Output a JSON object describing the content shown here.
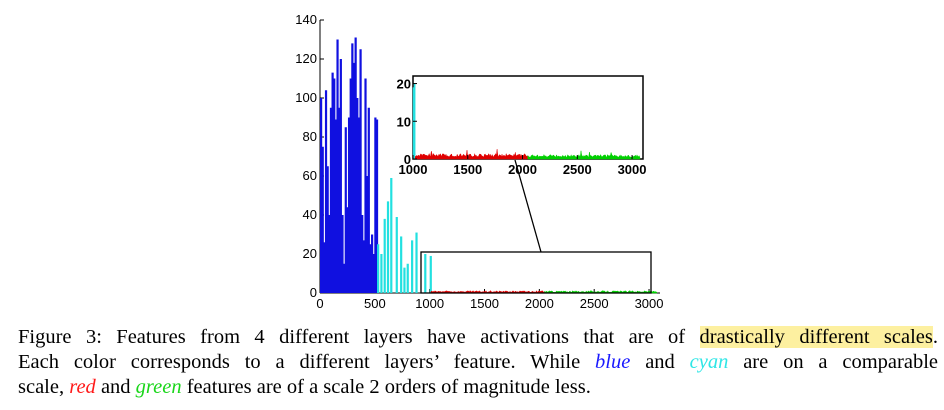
{
  "chart_data": [
    {
      "type": "bar",
      "title": "",
      "xlabel": "",
      "ylabel": "",
      "xlim": [
        0,
        3100
      ],
      "ylim": [
        0,
        140
      ],
      "x_ticks": [
        "0",
        "500",
        "1000",
        "1500",
        "2000",
        "2500",
        "3000"
      ],
      "y_ticks": [
        "0",
        "20",
        "40",
        "60",
        "80",
        "100",
        "120",
        "140"
      ],
      "series": [
        {
          "name": "blue",
          "color": "#1010e0",
          "x": [
            10,
            25,
            40,
            55,
            70,
            85,
            100,
            115,
            130,
            145,
            160,
            175,
            190,
            205,
            220,
            235,
            250,
            265,
            280,
            295,
            310,
            325,
            340,
            355,
            370,
            385,
            400,
            415,
            430,
            445,
            460,
            475,
            490,
            505,
            520
          ],
          "values": [
            100,
            75,
            26,
            104,
            65,
            40,
            95,
            113,
            110,
            89,
            130,
            95,
            120,
            40,
            15,
            85,
            44,
            90,
            110,
            128,
            118,
            131,
            100,
            90,
            125,
            40,
            27,
            110,
            60,
            95,
            25,
            30,
            20,
            90,
            89
          ]
        },
        {
          "name": "cyan",
          "color": "#22e0e0",
          "x": [
            530,
            560,
            590,
            620,
            650,
            700,
            740,
            770,
            800,
            840,
            880,
            960,
            1010
          ],
          "values": [
            25,
            20,
            38,
            47,
            59,
            39,
            29,
            13,
            15,
            27,
            31,
            20,
            19
          ]
        },
        {
          "name": "red",
          "color": "#e00000",
          "x_range": [
            1010,
            2048
          ],
          "approx_level": 1.0
        },
        {
          "name": "green",
          "color": "#00d000",
          "x_range": [
            2048,
            3072
          ],
          "approx_level": 0.8
        }
      ]
    },
    {
      "type": "bar",
      "title": "inset",
      "xlim": [
        1000,
        3100
      ],
      "ylim": [
        0,
        22
      ],
      "x_ticks": [
        "1000",
        "1500",
        "2000",
        "2500",
        "3000"
      ],
      "y_ticks": [
        "0",
        "10",
        "20"
      ],
      "series": [
        {
          "name": "cyan",
          "color": "#22e0e0",
          "x": [
            1005,
            1015
          ],
          "values": [
            19,
            20
          ]
        },
        {
          "name": "red",
          "color": "#e00000",
          "x_range": [
            1020,
            2048
          ],
          "approx_level": 1.0
        },
        {
          "name": "green",
          "color": "#00d000",
          "x_range": [
            2048,
            3072
          ],
          "approx_level": 0.8
        }
      ]
    }
  ],
  "caption": {
    "line1_prefix": "Figure 3:  Features from 4 different layers have activations that are of ",
    "line1_highlight": "drastically different scales",
    "line1_suffix": ".",
    "line2_prefix": "Each color corresponds to a different layers’ feature.  While ",
    "line2_blue": "blue",
    "line2_mid": " and ",
    "line2_cyan": "cyan",
    "line2_suffix": " are on a comparable",
    "line3_prefix": "scale, ",
    "line3_red": "red",
    "line3_mid": " and ",
    "line3_green": "green",
    "line3_suffix": " features are of a scale 2 orders of magnitude less."
  }
}
